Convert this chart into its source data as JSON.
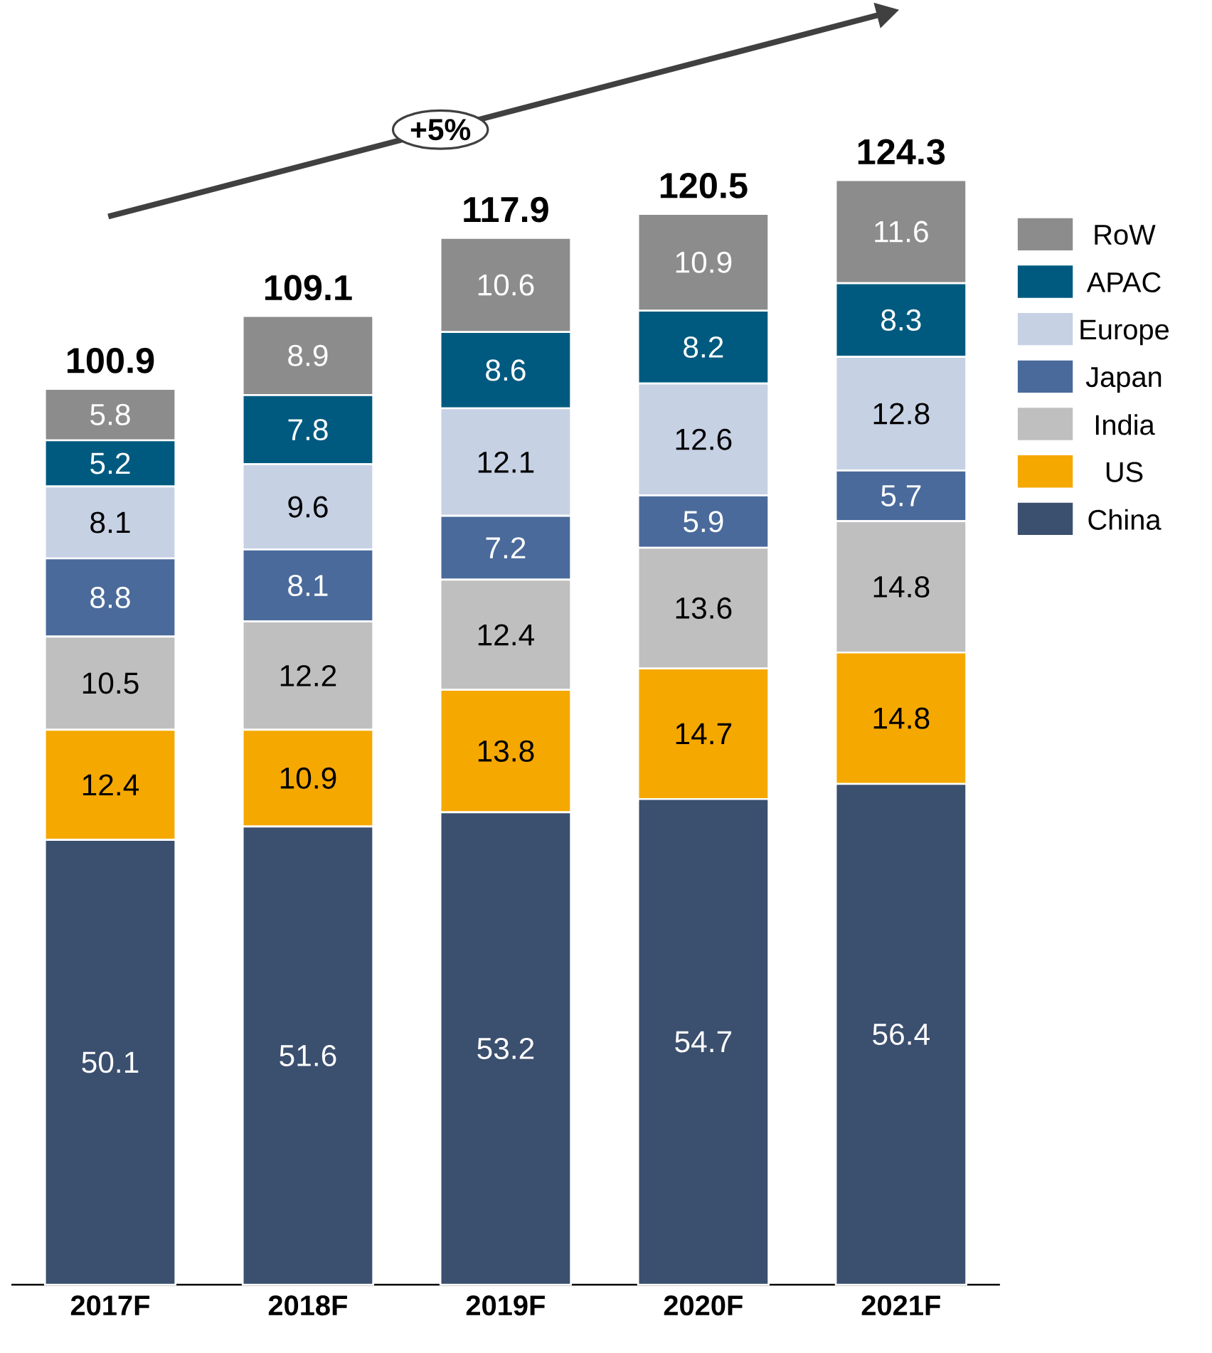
{
  "chart_data": {
    "type": "bar",
    "stacked": true,
    "categories": [
      "2017F",
      "2018F",
      "2019F",
      "2020F",
      "2021F"
    ],
    "series": [
      {
        "name": "China",
        "color": "#3b4f6f",
        "values": [
          50.1,
          51.6,
          53.2,
          54.7,
          56.4
        ]
      },
      {
        "name": "US",
        "color": "#f5a800",
        "values": [
          12.4,
          10.9,
          13.8,
          14.7,
          14.8
        ]
      },
      {
        "name": "India",
        "color": "#bfbfbf",
        "values": [
          10.5,
          12.2,
          12.4,
          13.6,
          14.8
        ]
      },
      {
        "name": "Japan",
        "color": "#4a6a9b",
        "values": [
          8.8,
          8.1,
          7.2,
          5.9,
          5.7
        ]
      },
      {
        "name": "Europe",
        "color": "#c6d1e4",
        "values": [
          8.1,
          9.6,
          12.1,
          12.6,
          12.8
        ]
      },
      {
        "name": "APAC",
        "color": "#005a80",
        "values": [
          5.2,
          7.8,
          8.6,
          8.2,
          8.3
        ]
      },
      {
        "name": "RoW",
        "color": "#8c8c8c",
        "values": [
          5.8,
          8.9,
          10.6,
          10.9,
          11.6
        ]
      }
    ],
    "totals": [
      "100.9",
      "109.1",
      "117.9",
      "120.5",
      "124.3"
    ],
    "data_labels": true,
    "legend": "right",
    "annotations": [
      "+5%"
    ]
  }
}
